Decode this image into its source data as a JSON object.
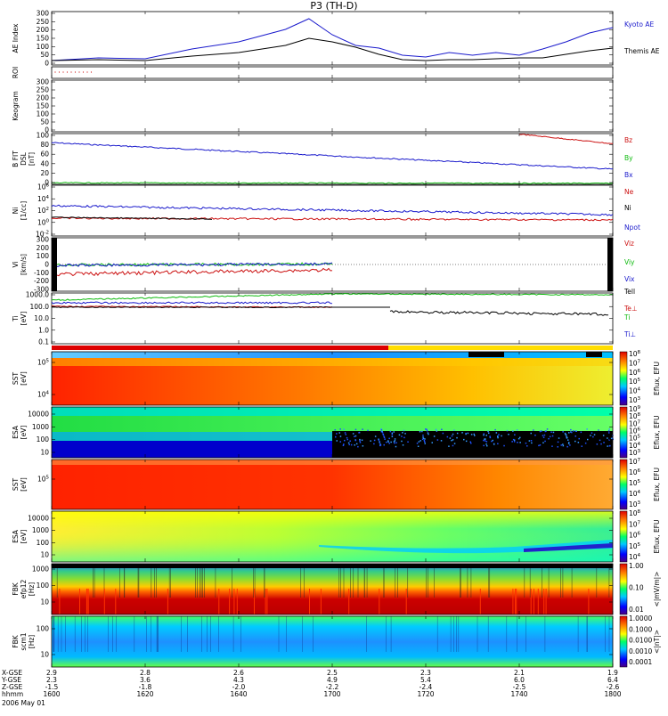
{
  "title": "P3 (TH-D)",
  "date": "2006 May 01",
  "colors": {
    "blue": "#1a1acc",
    "red": "#cc1111",
    "green": "#11bb11",
    "black": "#000000"
  },
  "chart_data": [
    {
      "type": "line",
      "panel": "ae",
      "ylabel": "AE Index",
      "yticks": [
        "300",
        "250",
        "200",
        "150",
        "100",
        "50",
        "0"
      ],
      "ylim": [
        0,
        300
      ],
      "x": [
        0,
        10,
        20,
        30,
        40,
        50,
        55,
        60,
        65,
        70,
        75,
        80,
        85,
        90,
        95,
        100,
        105,
        110,
        115,
        120
      ],
      "series": [
        {
          "name": "Kyoto AE",
          "values": [
            25,
            40,
            35,
            90,
            130,
            200,
            260,
            170,
            110,
            95,
            55,
            45,
            70,
            55,
            70,
            55,
            90,
            130,
            180,
            210
          ]
        },
        {
          "name": "Themis AE",
          "values": [
            25,
            30,
            25,
            50,
            70,
            110,
            150,
            130,
            100,
            60,
            30,
            25,
            30,
            30,
            35,
            40,
            40,
            60,
            80,
            95
          ]
        }
      ]
    },
    {
      "type": "scatter",
      "panel": "roi",
      "ylabel": "ROI",
      "note_labels": []
    },
    {
      "type": "line",
      "panel": "keogram",
      "ylabel": "Keogram",
      "yticks": [
        "300",
        "250",
        "200",
        "150",
        "100",
        "50",
        "0"
      ]
    },
    {
      "type": "line",
      "panel": "bfield",
      "ylabel": "B FIT DSL [nT]",
      "yticks": [
        "100",
        "80",
        "60",
        "40",
        "20",
        "0"
      ],
      "ylim": [
        0,
        100
      ],
      "x": [
        0,
        20,
        40,
        60,
        80,
        100,
        120
      ],
      "series": [
        {
          "name": "Bz",
          "values": [
            null,
            null,
            null,
            null,
            null,
            98,
            80
          ]
        },
        {
          "name": "By",
          "values": [
            3,
            3,
            2,
            2,
            2,
            2,
            2
          ]
        },
        {
          "name": "Bx",
          "values": [
            82,
            70,
            60,
            52,
            45,
            38,
            30
          ]
        }
      ]
    },
    {
      "type": "line",
      "panel": "density",
      "ylabel": "Ni [1/cc]",
      "yticks": [
        "10^6",
        "10^4",
        "10^2",
        "10^0",
        "10^-2"
      ],
      "series_labels": [
        "Ne",
        "Ni",
        "Npot"
      ]
    },
    {
      "type": "line",
      "panel": "velocity",
      "ylabel": "Vi [km/s]",
      "yticks": [
        "300",
        "200",
        "100",
        "0",
        "-100",
        "-200",
        "-300"
      ],
      "ylim": [
        -300,
        300
      ],
      "series_labels": [
        "Viz",
        "Viy",
        "Vix"
      ]
    },
    {
      "type": "line",
      "panel": "temperature",
      "ylabel": "Ti [eV]",
      "yticks": [
        "1000.0",
        "100.0",
        "10.0",
        "1.0",
        "0.1"
      ],
      "series_labels": [
        "Tell",
        "Te⊥",
        "Ti",
        "Ti⊥"
      ]
    },
    {
      "type": "heatmap",
      "panel": "sst_e",
      "ylabel": "SST [eV]",
      "yticks": [
        "10^5",
        "10^4"
      ],
      "colorbar_label": "Eflux, EFU",
      "colorbar_ticks": [
        "10^8",
        "10^7",
        "10^6",
        "10^5",
        "10^4",
        "10^3"
      ]
    },
    {
      "type": "heatmap",
      "panel": "esa_e",
      "ylabel": "ESA [eV]",
      "yticks": [
        "10000",
        "1000",
        "100",
        "10"
      ],
      "colorbar_label": "Eflux, EFU",
      "colorbar_ticks": [
        "10^9",
        "10^8",
        "10^7",
        "10^6",
        "10^5",
        "10^4",
        "10^3"
      ]
    },
    {
      "type": "heatmap",
      "panel": "sst_i",
      "ylabel": "SST [eV]",
      "yticks": [
        "10^5"
      ],
      "colorbar_label": "Eflux, EFU",
      "colorbar_ticks": [
        "10^7",
        "10^6",
        "10^5",
        "10^4",
        "10^3"
      ]
    },
    {
      "type": "heatmap",
      "panel": "esa_i",
      "ylabel": "ESA [eV]",
      "yticks": [
        "10000",
        "1000",
        "100",
        "10"
      ],
      "colorbar_label": "Eflux, EFU",
      "colorbar_ticks": [
        "10^8",
        "10^7",
        "10^6",
        "10^5",
        "10^4"
      ]
    },
    {
      "type": "heatmap",
      "panel": "fbk_e",
      "ylabel": "FBK efp12 [Hz]",
      "yticks": [
        "1000",
        "100",
        "10"
      ],
      "colorbar_label": "<|mV/m|>",
      "colorbar_ticks": [
        "1.00",
        "0.10",
        "0.01"
      ]
    },
    {
      "type": "heatmap",
      "panel": "fbk_b",
      "ylabel": "FBK scm1 [Hz]",
      "yticks": [
        "100",
        "10"
      ],
      "colorbar_label": "<|nT|>",
      "colorbar_ticks": [
        "1.0000",
        "0.1000",
        "0.0100",
        "0.0010",
        "0.0001"
      ]
    }
  ],
  "xaxis": {
    "row_labels": [
      "X-GSE",
      "Y-GSE",
      "Z-GSE",
      "hhmm"
    ],
    "columns": [
      {
        "x": "2.9",
        "y": "2.3",
        "z": "-1.5",
        "t": "1600"
      },
      {
        "x": "2.8",
        "y": "3.6",
        "z": "-1.8",
        "t": "1620"
      },
      {
        "x": "2.6",
        "y": "4.3",
        "z": "-2.0",
        "t": "1640"
      },
      {
        "x": "2.5",
        "y": "4.9",
        "z": "-2.2",
        "t": "1700"
      },
      {
        "x": "2.3",
        "y": "5.4",
        "z": "-2.4",
        "t": "1720"
      },
      {
        "x": "2.1",
        "y": "6.0",
        "z": "-2.5",
        "t": "1740"
      },
      {
        "x": "1.9",
        "y": "6.4",
        "z": "-2.6",
        "t": "1800"
      }
    ]
  }
}
